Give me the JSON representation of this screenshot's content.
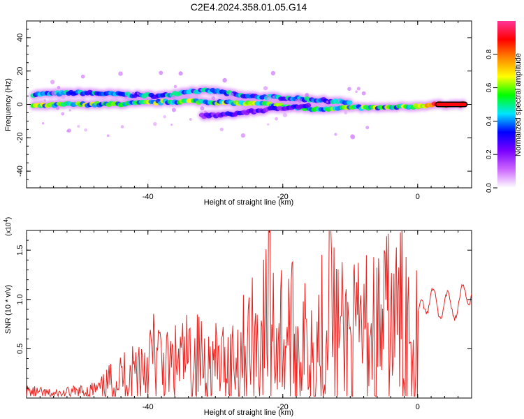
{
  "title": "C2E4.2024.358.01.05.G14",
  "chart_data": [
    {
      "type": "heatmap",
      "title": "C2E4.2024.358.01.05.G14",
      "xlabel": "Height of straight line (km)",
      "ylabel": "Frequency (Hz)",
      "xlim": [
        -58,
        8
      ],
      "ylim": [
        -50,
        50
      ],
      "xticks": [
        -40,
        -20,
        0
      ],
      "yticks": [
        -40,
        -20,
        0,
        20,
        40
      ],
      "ytick_labels": [
        "-40",
        "-20",
        "0",
        "20",
        "40"
      ],
      "colorbar": {
        "label": "Normalized spectral amplitude",
        "range": [
          0.0,
          1.0
        ],
        "ticks": [
          0.0,
          0.2,
          0.4,
          0.6,
          0.8
        ],
        "tick_labels": [
          "0.0",
          "0.2",
          "0.4",
          "0.6",
          "0.8"
        ],
        "colormap": [
          "#ffffff",
          "#cc66ff",
          "#7a00ff",
          "#0000ff",
          "#00e5ff",
          "#00ff00",
          "#ffff00",
          "#ff8800",
          "#ff0000",
          "#ff3399"
        ]
      },
      "tracks": [
        {
          "points": [
            [
              -57,
              6
            ],
            [
              -50,
              7
            ],
            [
              -44,
              6
            ],
            [
              -38,
              5
            ],
            [
              -34,
              8
            ],
            [
              -30,
              8
            ],
            [
              -26,
              5
            ],
            [
              -20,
              4
            ],
            [
              -16,
              3
            ],
            [
              -13,
              2
            ],
            [
              -10,
              1
            ]
          ],
          "amplitude": 0.45
        },
        {
          "points": [
            [
              -57,
              -1
            ],
            [
              -52,
              0
            ],
            [
              -46,
              0
            ],
            [
              -40,
              1
            ],
            [
              -34,
              2
            ],
            [
              -28,
              1
            ],
            [
              -22,
              0
            ],
            [
              -18,
              -2
            ],
            [
              -15,
              -3
            ],
            [
              -12,
              -2
            ],
            [
              -8,
              -2
            ],
            [
              -4,
              -2
            ],
            [
              0,
              -1
            ],
            [
              3,
              0
            ],
            [
              7,
              0
            ]
          ],
          "amplitude": 0.6
        },
        {
          "points": [
            [
              -32,
              -7
            ],
            [
              -28,
              -6
            ],
            [
              -24,
              -4
            ],
            [
              -20,
              -2
            ],
            [
              -16,
              -1
            ]
          ],
          "amplitude": 0.3
        }
      ]
    },
    {
      "type": "line",
      "title": "",
      "xlabel": "Height of straight line (km)",
      "ylabel": "SNR (10 * v/v)",
      "multiplier_label": "(x10",
      "multiplier_exp": "4",
      "xlim": [
        -58,
        8
      ],
      "ylim": [
        0.0,
        1.7
      ],
      "xticks": [
        -40,
        -20,
        0
      ],
      "yticks": [
        0.5,
        1.0,
        1.5
      ],
      "ytick_labels": [
        "0.5",
        "1.0",
        "1.5"
      ],
      "series": [
        {
          "color": "#e8231f",
          "x": [
            -58,
            -54,
            -50,
            -47,
            -45,
            -43,
            -41,
            -39,
            -37,
            -35,
            -33,
            -31,
            -29,
            -27,
            -25,
            -23,
            -22,
            -21,
            -19,
            -17,
            -15,
            -13,
            -11,
            -9,
            -8,
            -7,
            -6,
            -5,
            -4,
            -3,
            -2,
            -1,
            0,
            1,
            2,
            3,
            4,
            5,
            6,
            7,
            8
          ],
          "y": [
            0.08,
            0.05,
            0.08,
            0.12,
            0.25,
            0.32,
            0.45,
            0.55,
            0.4,
            0.48,
            0.55,
            0.45,
            0.45,
            0.55,
            0.7,
            0.85,
            1.05,
            0.9,
            0.85,
            0.7,
            0.8,
            1.0,
            0.8,
            0.8,
            0.85,
            0.95,
            0.9,
            0.95,
            1.05,
            1.0,
            1.15,
            1.0,
            0.85,
            0.9,
            1.1,
            0.85,
            1.0,
            0.9,
            0.95,
            1.05,
            1.1
          ]
        }
      ]
    }
  ]
}
